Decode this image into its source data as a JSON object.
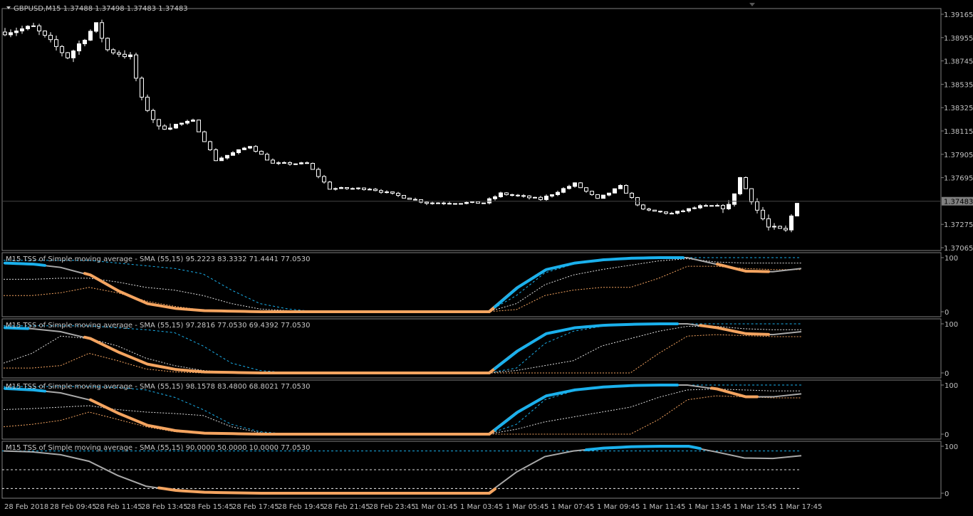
{
  "chart": {
    "symbol_line": "GBPUSD,M15  1.37488 1.37498 1.37483 1.37483",
    "current_price": "1.37483",
    "price_axis": [
      "1.39165",
      "1.38955",
      "1.38745",
      "1.38535",
      "1.38325",
      "1.38115",
      "1.37905",
      "1.37695",
      "1.37275",
      "1.37065"
    ],
    "price_range": [
      1.37065,
      1.39165
    ],
    "time_axis": [
      "28 Feb 2018",
      "28 Feb 09:45",
      "28 Feb 11:45",
      "28 Feb 13:45",
      "28 Feb 15:45",
      "28 Feb 17:45",
      "28 Feb 19:45",
      "28 Feb 21:45",
      "28 Feb 23:45",
      "1 Mar 01:45",
      "1 Mar 03:45",
      "1 Mar 05:45",
      "1 Mar 07:45",
      "1 Mar 09:45",
      "1 Mar 11:45",
      "1 Mar 13:45",
      "1 Mar 15:45",
      "1 Mar 17:45"
    ],
    "price_path": [
      [
        0,
        1.39005
      ],
      [
        5,
        1.3905
      ],
      [
        11,
        1.38781
      ],
      [
        16,
        1.39069
      ],
      [
        18,
        1.38845
      ],
      [
        22,
        1.38781
      ],
      [
        24,
        1.38397
      ],
      [
        27,
        1.38141
      ],
      [
        33,
        1.38205
      ],
      [
        37,
        1.37853
      ],
      [
        43,
        1.37981
      ],
      [
        47,
        1.37821
      ],
      [
        53,
        1.37821
      ],
      [
        57,
        1.37597
      ],
      [
        64,
        1.37597
      ],
      [
        74,
        1.37469
      ],
      [
        84,
        1.37469
      ],
      [
        87,
        1.37552
      ],
      [
        94,
        1.37501
      ],
      [
        100,
        1.37641
      ],
      [
        104,
        1.37501
      ],
      [
        108,
        1.37616
      ],
      [
        112,
        1.37404
      ],
      [
        117,
        1.37372
      ],
      [
        122,
        1.37436
      ],
      [
        127,
        1.37436
      ],
      [
        129,
        1.37693
      ],
      [
        132,
        1.37404
      ],
      [
        134,
        1.37245
      ],
      [
        137,
        1.37213
      ],
      [
        139,
        1.37483
      ]
    ]
  },
  "indicators": [
    {
      "label": "M15 TSS of Simple moving average - SMA (55,15) 95.2223 83.3332 71.4441 77.0530",
      "axis": [
        "100",
        "0"
      ],
      "main": [
        90,
        88,
        82,
        68,
        38,
        15,
        6,
        2,
        1,
        0,
        0,
        0,
        0,
        0,
        0,
        0,
        0,
        0,
        45,
        78,
        90,
        96,
        99,
        100,
        100,
        88,
        75,
        74,
        80
      ],
      "upper": [
        95,
        95,
        95,
        95,
        90,
        85,
        80,
        70,
        40,
        15,
        5,
        0,
        0,
        0,
        0,
        0,
        0,
        0,
        30,
        72,
        88,
        95,
        99,
        100,
        100,
        100,
        100,
        100,
        100
      ],
      "middle": [
        60,
        60,
        62,
        62,
        55,
        45,
        40,
        30,
        15,
        5,
        2,
        0,
        0,
        0,
        0,
        0,
        0,
        0,
        15,
        50,
        68,
        78,
        86,
        94,
        98,
        92,
        90,
        90,
        90
      ],
      "lower": [
        30,
        30,
        35,
        45,
        35,
        20,
        10,
        3,
        1,
        0,
        0,
        0,
        0,
        0,
        0,
        0,
        0,
        0,
        4,
        30,
        40,
        45,
        45,
        62,
        84,
        84,
        80,
        78,
        78
      ],
      "segments": [
        [
          0,
          7,
          "#1ab0ec"
        ],
        [
          14,
          86,
          "#f4a460"
        ],
        [
          86,
          119,
          "#1ab0ec"
        ],
        [
          125,
          134,
          "#f4a460"
        ]
      ]
    },
    {
      "label": "M15 TSS of Simple moving average - SMA (55,15) 97.2816 77.0530 69.4392 77.0530",
      "axis": [
        "100",
        "0"
      ],
      "main": [
        92,
        90,
        84,
        70,
        42,
        18,
        7,
        2,
        1,
        0,
        0,
        0,
        0,
        0,
        0,
        0,
        0,
        0,
        45,
        80,
        92,
        97,
        99,
        100,
        100,
        92,
        80,
        78,
        84
      ],
      "upper": [
        96,
        96,
        96,
        96,
        92,
        88,
        82,
        55,
        20,
        5,
        0,
        0,
        0,
        0,
        0,
        0,
        0,
        0,
        10,
        60,
        85,
        95,
        99,
        100,
        100,
        100,
        100,
        100,
        100
      ],
      "middle": [
        20,
        40,
        75,
        70,
        55,
        30,
        15,
        5,
        1,
        0,
        0,
        0,
        0,
        0,
        0,
        0,
        0,
        0,
        5,
        15,
        25,
        55,
        70,
        85,
        95,
        95,
        90,
        88,
        88
      ],
      "lower": [
        10,
        10,
        15,
        40,
        25,
        8,
        2,
        0,
        0,
        0,
        0,
        0,
        0,
        0,
        0,
        0,
        0,
        0,
        0,
        0,
        0,
        0,
        0,
        40,
        75,
        78,
        76,
        74,
        74
      ],
      "segments": [
        [
          0,
          4,
          "#1ab0ec"
        ],
        [
          14,
          86,
          "#f4a460"
        ],
        [
          86,
          118,
          "#1ab0ec"
        ],
        [
          122,
          134,
          "#f4a460"
        ]
      ]
    },
    {
      "label": "M15 TSS of Simple moving average - SMA (55,15) 98.1578 83.4800 68.8021 77.0530",
      "axis": [
        "100",
        "0"
      ],
      "main": [
        93,
        90,
        84,
        70,
        42,
        18,
        7,
        2,
        1,
        0,
        0,
        0,
        0,
        0,
        0,
        0,
        0,
        0,
        45,
        78,
        90,
        96,
        99,
        100,
        100,
        92,
        76,
        76,
        82
      ],
      "upper": [
        97,
        97,
        97,
        97,
        95,
        90,
        75,
        50,
        20,
        5,
        0,
        0,
        0,
        0,
        0,
        0,
        0,
        0,
        20,
        70,
        88,
        95,
        99,
        100,
        100,
        100,
        100,
        100,
        100
      ],
      "middle": [
        50,
        52,
        55,
        58,
        50,
        45,
        42,
        38,
        15,
        3,
        0,
        0,
        0,
        0,
        0,
        0,
        0,
        0,
        10,
        25,
        35,
        45,
        55,
        75,
        90,
        92,
        90,
        88,
        88
      ],
      "lower": [
        15,
        20,
        28,
        45,
        30,
        15,
        5,
        1,
        0,
        0,
        0,
        0,
        0,
        0,
        0,
        0,
        0,
        0,
        0,
        0,
        0,
        0,
        0,
        30,
        70,
        78,
        76,
        74,
        74
      ],
      "segments": [
        [
          0,
          7,
          "#1ab0ec"
        ],
        [
          15,
          86,
          "#f4a460"
        ],
        [
          86,
          118,
          "#1ab0ec"
        ],
        [
          124,
          132,
          "#f4a460"
        ]
      ]
    },
    {
      "label": "M15 TSS of Simple moving average - SMA (55,15) 90.0000 50.0000 10.0000 77.0530",
      "axis": [
        "100",
        "0"
      ],
      "main": [
        90,
        88,
        82,
        68,
        38,
        15,
        6,
        2,
        1,
        0,
        0,
        0,
        0,
        0,
        0,
        0,
        0,
        0,
        45,
        78,
        90,
        96,
        99,
        100,
        100,
        88,
        75,
        74,
        80
      ],
      "levels": [
        90,
        50,
        10
      ],
      "segments": [
        [
          27,
          86,
          "#f4a460"
        ],
        [
          102,
          122,
          "#1ab0ec"
        ]
      ]
    }
  ],
  "colors": {
    "bull": "#ffffff",
    "bear": "#000000",
    "up": "#1ab0ec",
    "down": "#f4a460",
    "neutral": "#a9a9a9",
    "grid": "#808080"
  }
}
